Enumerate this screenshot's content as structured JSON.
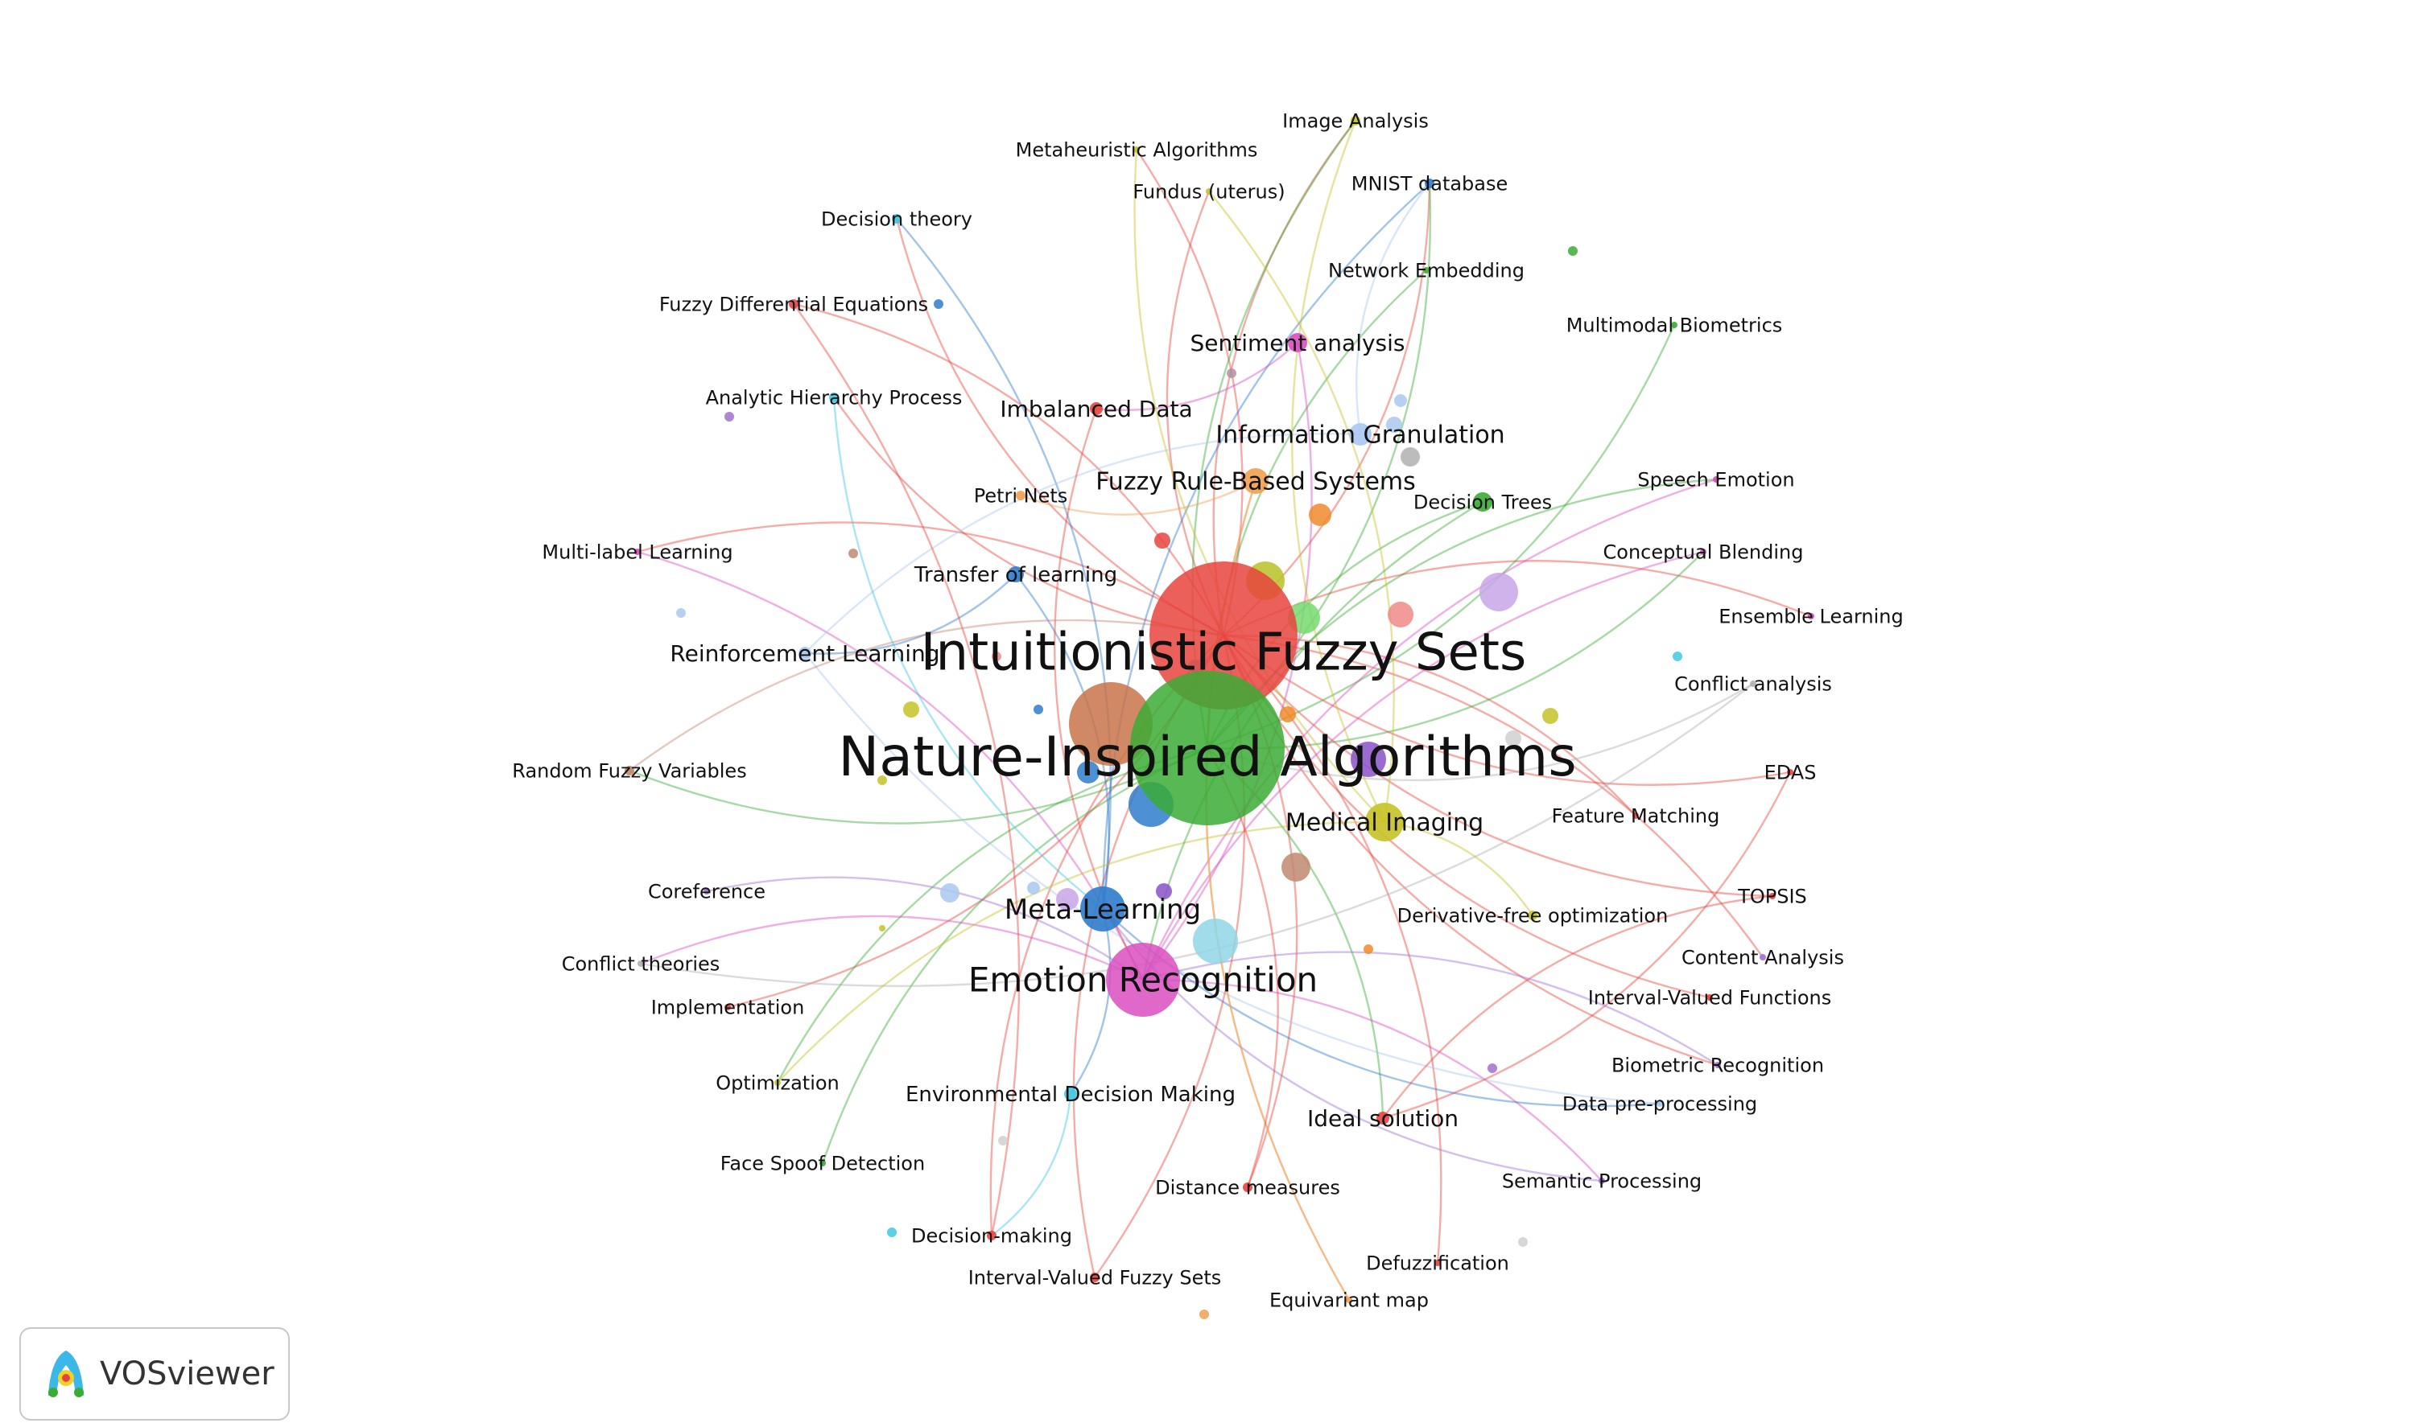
{
  "brand": {
    "name": "VOSviewer"
  },
  "nodes": [
    {
      "label": "Intuitionistic Fuzzy Sets",
      "color": "#e8443e"
    },
    {
      "label": "Nature-Inspired Algorithms",
      "color": "#3bab35"
    },
    {
      "label": "Emotion Recognition",
      "color": "#d94ec0"
    },
    {
      "label": "Meta-Learning",
      "color": "#2f7ccc"
    },
    {
      "label": "Medical Imaging",
      "color": "#c6c226"
    },
    {
      "label": "Information Granulation",
      "color": "#aac8f0"
    },
    {
      "label": "Fuzzy Rule-Based Systems",
      "color": "#f0a050"
    },
    {
      "label": "Sentiment analysis",
      "color": "#d94ec0"
    },
    {
      "label": "Imbalanced Data",
      "color": "#e8443e"
    },
    {
      "label": "Transfer of learning",
      "color": "#2f7ccc"
    },
    {
      "label": "Reinforcement Learning",
      "color": "#aac8f0"
    },
    {
      "label": "Ideal solution",
      "color": "#e8443e"
    },
    {
      "label": "Environmental Decision Making",
      "color": "#40c8e0"
    },
    {
      "label": "Image Analysis",
      "color": "#c6c226"
    },
    {
      "label": "Metaheuristic Algorithms",
      "color": "#c6c226"
    },
    {
      "label": "Fundus (uterus)",
      "color": "#c6c226"
    },
    {
      "label": "MNIST database",
      "color": "#2f7ccc"
    },
    {
      "label": "Decision theory",
      "color": "#40c8e0"
    },
    {
      "label": "Network Embedding",
      "color": "#3bab35"
    },
    {
      "label": "Fuzzy Differential Equations",
      "color": "#e8443e"
    },
    {
      "label": "Multimodal Biometrics",
      "color": "#3bab35"
    },
    {
      "label": "Analytic Hierarchy Process",
      "color": "#40c8e0"
    },
    {
      "label": "Speech Emotion",
      "color": "#d94ec0"
    },
    {
      "label": "Petri Nets",
      "color": "#f0a050"
    },
    {
      "label": "Decision Trees",
      "color": "#3bab35"
    },
    {
      "label": "Multi-label Learning",
      "color": "#d94ec0"
    },
    {
      "label": "Conceptual Blending",
      "color": "#d94ec0"
    },
    {
      "label": "Ensemble Learning",
      "color": "#d94ec0"
    },
    {
      "label": "Conflict analysis",
      "color": "#b0b0b0"
    },
    {
      "label": "Random Fuzzy Variables",
      "color": "#c08870"
    },
    {
      "label": "EDAS",
      "color": "#e8443e"
    },
    {
      "label": "Feature Matching",
      "color": "#e8443e"
    },
    {
      "label": "Coreference",
      "color": "#a070d0"
    },
    {
      "label": "TOPSIS",
      "color": "#e8443e"
    },
    {
      "label": "Derivative-free optimization",
      "color": "#c6c226"
    },
    {
      "label": "Content Analysis",
      "color": "#a070d0"
    },
    {
      "label": "Conflict theories",
      "color": "#b0b0b0"
    },
    {
      "label": "Implementation",
      "color": "#e8443e"
    },
    {
      "label": "Interval-Valued Functions",
      "color": "#e8443e"
    },
    {
      "label": "Optimization",
      "color": "#c6c226"
    },
    {
      "label": "Biometric Recognition",
      "color": "#a070d0"
    },
    {
      "label": "Data pre-processing",
      "color": "#aac8f0"
    },
    {
      "label": "Face Spoof Detection",
      "color": "#3bab35"
    },
    {
      "label": "Distance measures",
      "color": "#e8443e"
    },
    {
      "label": "Semantic Processing",
      "color": "#a070d0"
    },
    {
      "label": "Decision-making",
      "color": "#e8443e"
    },
    {
      "label": "Defuzzification",
      "color": "#e8443e"
    },
    {
      "label": "Interval-Valued Fuzzy Sets",
      "color": "#e8443e"
    },
    {
      "label": "Equivariant map",
      "color": "#f0a050"
    }
  ]
}
